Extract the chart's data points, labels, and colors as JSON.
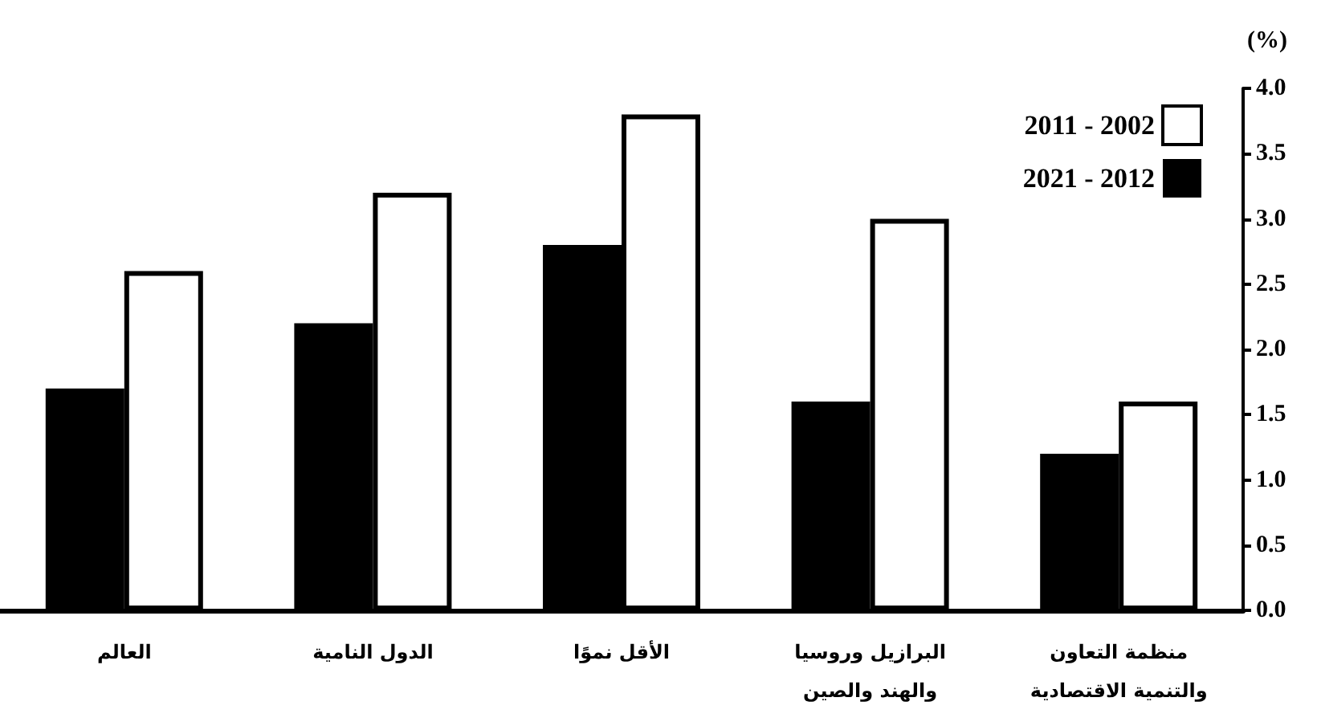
{
  "chart_data": {
    "type": "bar",
    "ylabel": "(%)",
    "categories": [
      "العالم",
      "الدول النامية",
      "الأقل نموًا",
      "البرازيل وروسيا\nوالهند والصين",
      "منظمة التعاون\nوالتنمية الاقتصادية"
    ],
    "series": [
      {
        "name": "2021 - 2012",
        "color": "#000000",
        "values": [
          1.7,
          2.2,
          2.8,
          1.6,
          1.2
        ]
      },
      {
        "name": "2011 - 2002",
        "color": "#ffffff",
        "values": [
          2.6,
          3.2,
          3.8,
          3.0,
          1.6
        ]
      }
    ],
    "ylim": [
      0,
      4
    ],
    "yticks": [
      {
        "value": 0,
        "label": "0.0"
      },
      0.5,
      {
        "value": 1,
        "label": "1.0"
      },
      1.5,
      {
        "value": 2,
        "label": "2.0"
      },
      2.5,
      {
        "value": 3,
        "label": "3.0"
      },
      3.5,
      {
        "value": 4,
        "label": "4.0"
      }
    ],
    "grid": false,
    "legend": "top right"
  }
}
